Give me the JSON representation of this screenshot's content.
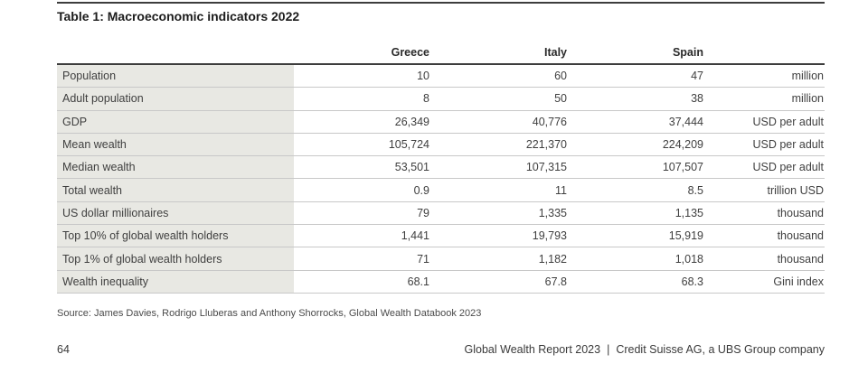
{
  "title": "Table 1: Macroeconomic indicators 2022",
  "table": {
    "columns": [
      "Greece",
      "Italy",
      "Spain"
    ],
    "rows": [
      {
        "label": "Population",
        "greece": "10",
        "italy": "60",
        "spain": "47",
        "unit": "million"
      },
      {
        "label": "Adult population",
        "greece": "8",
        "italy": "50",
        "spain": "38",
        "unit": "million"
      },
      {
        "label": "GDP",
        "greece": "26,349",
        "italy": "40,776",
        "spain": "37,444",
        "unit": "USD per adult"
      },
      {
        "label": "Mean wealth",
        "greece": "105,724",
        "italy": "221,370",
        "spain": "224,209",
        "unit": "USD per adult"
      },
      {
        "label": "Median wealth",
        "greece": "53,501",
        "italy": "107,315",
        "spain": "107,507",
        "unit": "USD per adult"
      },
      {
        "label": "Total wealth",
        "greece": "0.9",
        "italy": "11",
        "spain": "8.5",
        "unit": "trillion USD"
      },
      {
        "label": "US dollar millionaires",
        "greece": "79",
        "italy": "1,335",
        "spain": "1,135",
        "unit": "thousand"
      },
      {
        "label": "Top 10% of global wealth holders",
        "greece": "1,441",
        "italy": "19,793",
        "spain": "15,919",
        "unit": "thousand"
      },
      {
        "label": "Top 1% of global wealth holders",
        "greece": "71",
        "italy": "1,182",
        "spain": "1,018",
        "unit": "thousand"
      },
      {
        "label": "Wealth inequality",
        "greece": "68.1",
        "italy": "67.8",
        "spain": "68.3",
        "unit": "Gini index"
      }
    ]
  },
  "source": "Source: James Davies, Rodrigo Lluberas and Anthony Shorrocks, Global Wealth Databook 2023",
  "footer": {
    "page_number": "64",
    "report_title": "Global Wealth Report 2023",
    "separator": "|",
    "company": "Credit Suisse AG, a UBS Group company"
  },
  "colors": {
    "label_column_background": "#e8e8e3",
    "dark_rule": "#3d3d3d",
    "light_rule": "#c8c8c8",
    "body_text": "#3f3f3f",
    "title_text": "#1c1c1c"
  }
}
